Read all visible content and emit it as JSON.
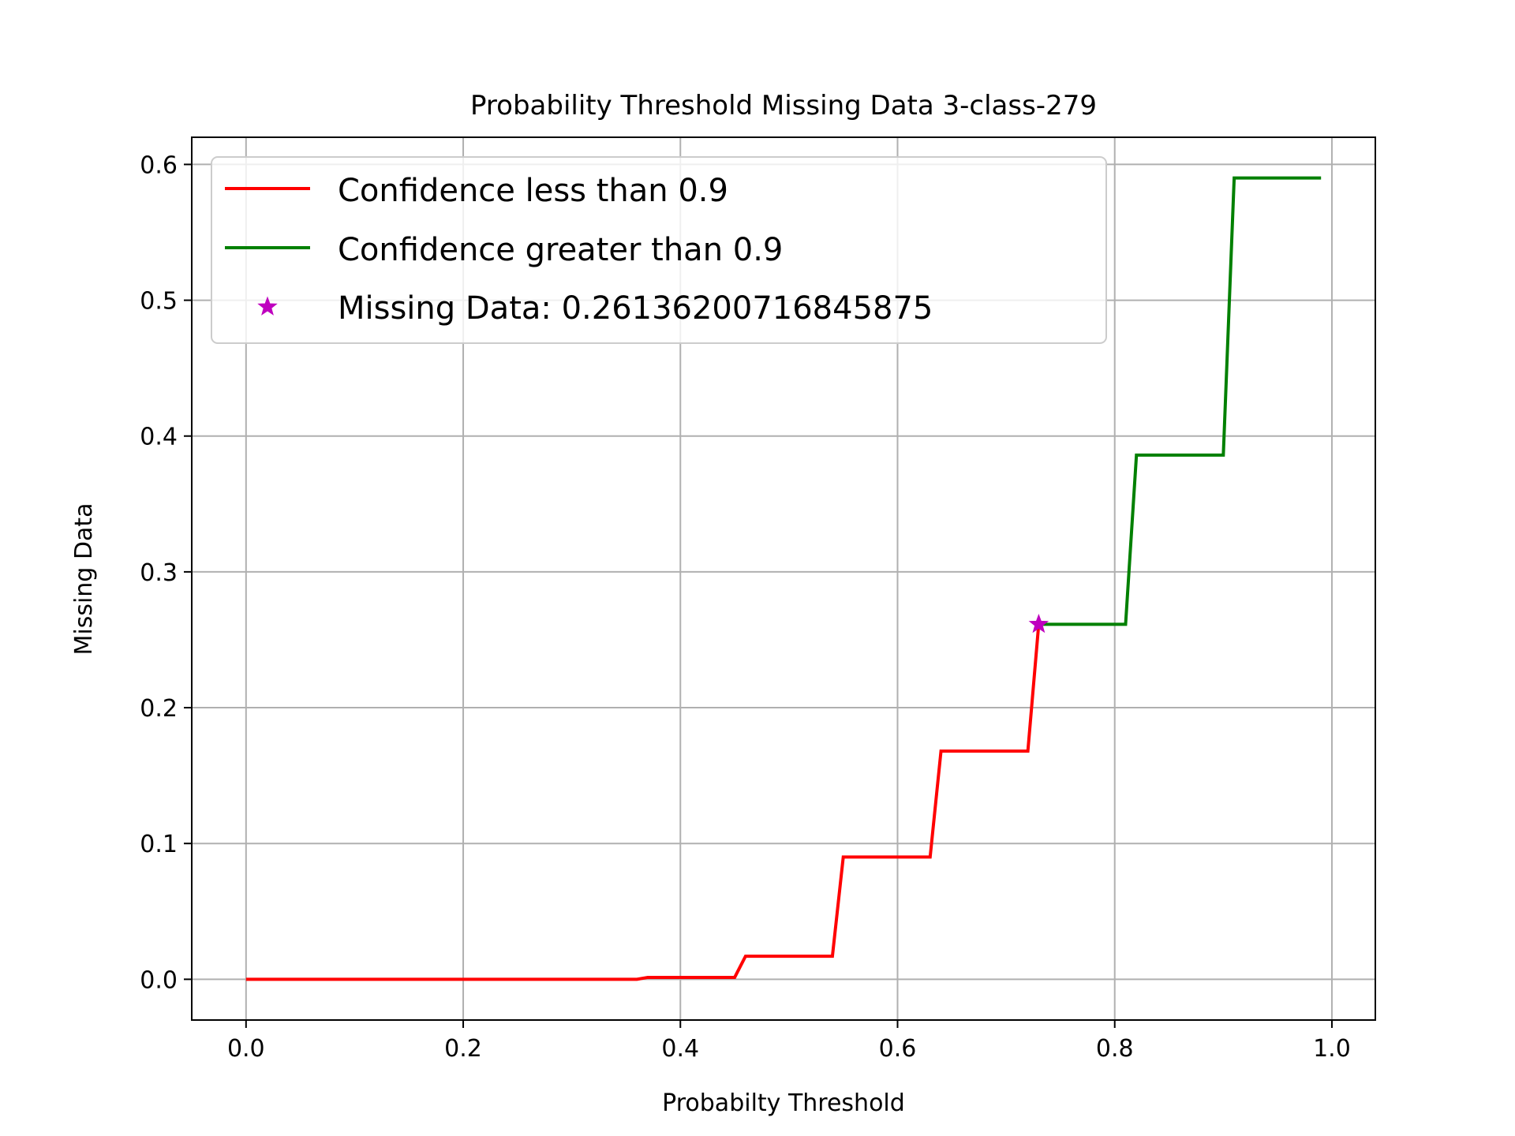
{
  "chart_data": {
    "type": "line",
    "title": "Probability Threshold Missing Data 3-class-279",
    "xlabel": "Probabilty Threshold",
    "ylabel": "Missing Data",
    "xlim": [
      -0.05,
      1.04
    ],
    "ylim": [
      -0.03,
      0.62
    ],
    "xticks": [
      0.0,
      0.2,
      0.4,
      0.6,
      0.8,
      1.0
    ],
    "xtick_labels": [
      "0.0",
      "0.2",
      "0.4",
      "0.6",
      "0.8",
      "1.0"
    ],
    "yticks": [
      0.0,
      0.1,
      0.2,
      0.3,
      0.4,
      0.5,
      0.6
    ],
    "ytick_labels": [
      "0.0",
      "0.1",
      "0.2",
      "0.3",
      "0.4",
      "0.5",
      "0.6"
    ],
    "grid": true,
    "legend_position": "upper-left",
    "series": [
      {
        "name": "Confidence less than 0.9",
        "color": "#ff0000",
        "points": [
          [
            0.0,
            0.0
          ],
          [
            0.36,
            0.0
          ],
          [
            0.37,
            0.0014
          ],
          [
            0.45,
            0.0014
          ],
          [
            0.46,
            0.017
          ],
          [
            0.54,
            0.017
          ],
          [
            0.55,
            0.09
          ],
          [
            0.63,
            0.09
          ],
          [
            0.64,
            0.168
          ],
          [
            0.72,
            0.168
          ],
          [
            0.73,
            0.2614
          ]
        ]
      },
      {
        "name": "Confidence greater than 0.9",
        "color": "#008000",
        "points": [
          [
            0.73,
            0.2614
          ],
          [
            0.81,
            0.2614
          ],
          [
            0.82,
            0.386
          ],
          [
            0.9,
            0.386
          ],
          [
            0.91,
            0.59
          ],
          [
            0.99,
            0.59
          ]
        ]
      }
    ],
    "marker": {
      "name": "Missing Data: 0.26136200716845875",
      "color": "#bf00bf",
      "symbol": "star",
      "x": 0.73,
      "y": 0.26136200716845875
    }
  }
}
